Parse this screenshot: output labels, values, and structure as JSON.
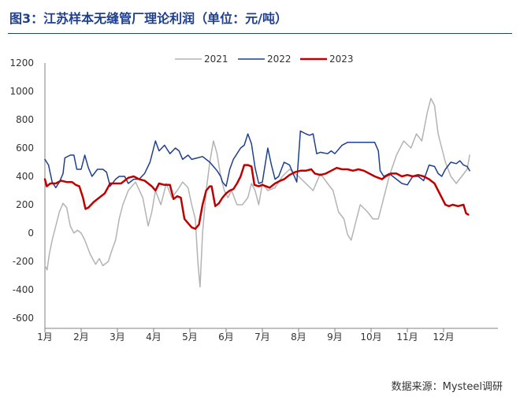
{
  "title": "图3：江苏样本无缝管厂理论利润（单位：元/吨）",
  "source": "数据来源：Mysteel调研",
  "chart_data": {
    "type": "line",
    "ylim": [
      -600,
      1200
    ],
    "yticks": [
      1200,
      1000,
      800,
      600,
      400,
      200,
      0,
      -200,
      -400,
      -600
    ],
    "xlim": [
      0,
      12
    ],
    "xticks": [
      {
        "label": "1月",
        "pos": 0
      },
      {
        "label": "2月",
        "pos": 1
      },
      {
        "label": "3月",
        "pos": 2
      },
      {
        "label": "4月",
        "pos": 3
      },
      {
        "label": "5月",
        "pos": 4
      },
      {
        "label": "6月",
        "pos": 5
      },
      {
        "label": "7月",
        "pos": 6
      },
      {
        "label": "8月",
        "pos": 7
      },
      {
        "label": "9月",
        "pos": 8
      },
      {
        "label": "10月",
        "pos": 9
      },
      {
        "label": "11月",
        "pos": 10
      },
      {
        "label": "12月",
        "pos": 11
      }
    ],
    "legend_position": "top",
    "series": [
      {
        "name": "2021",
        "color": "#b3b3b3",
        "width": 1.5,
        "points": [
          [
            0.0,
            -230
          ],
          [
            0.06,
            -260
          ],
          [
            0.12,
            -150
          ],
          [
            0.2,
            -50
          ],
          [
            0.3,
            50
          ],
          [
            0.4,
            150
          ],
          [
            0.5,
            210
          ],
          [
            0.6,
            180
          ],
          [
            0.7,
            50
          ],
          [
            0.8,
            0
          ],
          [
            0.9,
            20
          ],
          [
            1.0,
            0
          ],
          [
            1.1,
            -50
          ],
          [
            1.25,
            -150
          ],
          [
            1.4,
            -220
          ],
          [
            1.5,
            -180
          ],
          [
            1.6,
            -230
          ],
          [
            1.75,
            -200
          ],
          [
            1.85,
            -120
          ],
          [
            1.95,
            -50
          ],
          [
            2.05,
            100
          ],
          [
            2.15,
            200
          ],
          [
            2.3,
            300
          ],
          [
            2.5,
            360
          ],
          [
            2.7,
            250
          ],
          [
            2.85,
            50
          ],
          [
            2.95,
            150
          ],
          [
            3.05,
            300
          ],
          [
            3.2,
            200
          ],
          [
            3.35,
            350
          ],
          [
            3.5,
            250
          ],
          [
            3.65,
            300
          ],
          [
            3.8,
            360
          ],
          [
            3.95,
            320
          ],
          [
            4.05,
            200
          ],
          [
            4.15,
            100
          ],
          [
            4.22,
            -200
          ],
          [
            4.28,
            -380
          ],
          [
            4.35,
            0
          ],
          [
            4.45,
            300
          ],
          [
            4.55,
            500
          ],
          [
            4.65,
            650
          ],
          [
            4.75,
            560
          ],
          [
            4.85,
            400
          ],
          [
            4.95,
            300
          ],
          [
            5.05,
            250
          ],
          [
            5.15,
            300
          ],
          [
            5.3,
            200
          ],
          [
            5.45,
            200
          ],
          [
            5.6,
            250
          ],
          [
            5.7,
            350
          ],
          [
            5.8,
            300
          ],
          [
            5.9,
            200
          ],
          [
            6.0,
            350
          ],
          [
            6.15,
            300
          ],
          [
            6.35,
            320
          ],
          [
            6.55,
            400
          ],
          [
            6.75,
            450
          ],
          [
            7.0,
            400
          ],
          [
            7.2,
            350
          ],
          [
            7.4,
            300
          ],
          [
            7.6,
            420
          ],
          [
            7.8,
            350
          ],
          [
            7.95,
            300
          ],
          [
            8.1,
            150
          ],
          [
            8.25,
            100
          ],
          [
            8.35,
            -10
          ],
          [
            8.45,
            -50
          ],
          [
            8.55,
            50
          ],
          [
            8.7,
            200
          ],
          [
            8.9,
            150
          ],
          [
            9.05,
            100
          ],
          [
            9.2,
            100
          ],
          [
            9.3,
            200
          ],
          [
            9.5,
            400
          ],
          [
            9.7,
            550
          ],
          [
            9.9,
            650
          ],
          [
            10.1,
            600
          ],
          [
            10.25,
            700
          ],
          [
            10.4,
            650
          ],
          [
            10.55,
            850
          ],
          [
            10.65,
            950
          ],
          [
            10.75,
            900
          ],
          [
            10.85,
            700
          ],
          [
            10.95,
            600
          ],
          [
            11.05,
            500
          ],
          [
            11.2,
            400
          ],
          [
            11.35,
            350
          ],
          [
            11.5,
            400
          ],
          [
            11.65,
            450
          ],
          [
            11.72,
            550
          ]
        ]
      },
      {
        "name": "2022",
        "color": "#1f3f8f",
        "width": 1.5,
        "points": [
          [
            0.0,
            520
          ],
          [
            0.1,
            480
          ],
          [
            0.2,
            360
          ],
          [
            0.3,
            320
          ],
          [
            0.4,
            360
          ],
          [
            0.5,
            420
          ],
          [
            0.55,
            530
          ],
          [
            0.7,
            550
          ],
          [
            0.8,
            550
          ],
          [
            0.88,
            450
          ],
          [
            1.0,
            450
          ],
          [
            1.1,
            550
          ],
          [
            1.2,
            460
          ],
          [
            1.3,
            400
          ],
          [
            1.45,
            450
          ],
          [
            1.6,
            450
          ],
          [
            1.7,
            430
          ],
          [
            1.8,
            330
          ],
          [
            1.95,
            380
          ],
          [
            2.05,
            400
          ],
          [
            2.2,
            400
          ],
          [
            2.3,
            350
          ],
          [
            2.45,
            380
          ],
          [
            2.6,
            380
          ],
          [
            2.75,
            420
          ],
          [
            2.9,
            500
          ],
          [
            3.05,
            650
          ],
          [
            3.15,
            580
          ],
          [
            3.3,
            620
          ],
          [
            3.45,
            560
          ],
          [
            3.6,
            600
          ],
          [
            3.7,
            580
          ],
          [
            3.8,
            520
          ],
          [
            3.95,
            550
          ],
          [
            4.05,
            520
          ],
          [
            4.2,
            530
          ],
          [
            4.35,
            540
          ],
          [
            4.55,
            500
          ],
          [
            4.65,
            470
          ],
          [
            4.75,
            440
          ],
          [
            4.85,
            400
          ],
          [
            4.9,
            360
          ],
          [
            5.0,
            330
          ],
          [
            5.1,
            450
          ],
          [
            5.2,
            520
          ],
          [
            5.3,
            560
          ],
          [
            5.4,
            600
          ],
          [
            5.5,
            620
          ],
          [
            5.6,
            700
          ],
          [
            5.7,
            630
          ],
          [
            5.8,
            460
          ],
          [
            5.9,
            350
          ],
          [
            6.0,
            360
          ],
          [
            6.15,
            600
          ],
          [
            6.25,
            480
          ],
          [
            6.35,
            380
          ],
          [
            6.45,
            400
          ],
          [
            6.6,
            500
          ],
          [
            6.75,
            480
          ],
          [
            6.85,
            420
          ],
          [
            6.95,
            360
          ],
          [
            7.05,
            720
          ],
          [
            7.2,
            700
          ],
          [
            7.3,
            690
          ],
          [
            7.4,
            700
          ],
          [
            7.5,
            560
          ],
          [
            7.6,
            570
          ],
          [
            7.8,
            560
          ],
          [
            7.9,
            580
          ],
          [
            8.0,
            560
          ],
          [
            8.2,
            620
          ],
          [
            8.35,
            640
          ],
          [
            8.5,
            640
          ],
          [
            8.7,
            640
          ],
          [
            8.9,
            640
          ],
          [
            9.1,
            640
          ],
          [
            9.2,
            580
          ],
          [
            9.25,
            440
          ],
          [
            9.35,
            400
          ],
          [
            9.5,
            420
          ],
          [
            9.6,
            400
          ],
          [
            9.7,
            380
          ],
          [
            9.85,
            350
          ],
          [
            10.0,
            340
          ],
          [
            10.15,
            400
          ],
          [
            10.3,
            400
          ],
          [
            10.45,
            370
          ],
          [
            10.6,
            480
          ],
          [
            10.75,
            470
          ],
          [
            10.85,
            420
          ],
          [
            10.95,
            400
          ],
          [
            11.05,
            450
          ],
          [
            11.2,
            500
          ],
          [
            11.35,
            490
          ],
          [
            11.45,
            510
          ],
          [
            11.55,
            480
          ],
          [
            11.65,
            470
          ],
          [
            11.72,
            440
          ]
        ]
      },
      {
        "name": "2023",
        "color": "#c00000",
        "width": 2.5,
        "points": [
          [
            0.0,
            380
          ],
          [
            0.05,
            330
          ],
          [
            0.15,
            350
          ],
          [
            0.3,
            350
          ],
          [
            0.45,
            370
          ],
          [
            0.6,
            360
          ],
          [
            0.75,
            360
          ],
          [
            0.85,
            340
          ],
          [
            0.95,
            330
          ],
          [
            1.05,
            250
          ],
          [
            1.12,
            170
          ],
          [
            1.2,
            180
          ],
          [
            1.35,
            220
          ],
          [
            1.5,
            250
          ],
          [
            1.65,
            280
          ],
          [
            1.8,
            350
          ],
          [
            1.95,
            350
          ],
          [
            2.1,
            350
          ],
          [
            2.3,
            390
          ],
          [
            2.45,
            400
          ],
          [
            2.6,
            380
          ],
          [
            2.75,
            370
          ],
          [
            2.85,
            350
          ],
          [
            2.95,
            330
          ],
          [
            3.05,
            300
          ],
          [
            3.15,
            350
          ],
          [
            3.3,
            340
          ],
          [
            3.45,
            340
          ],
          [
            3.55,
            240
          ],
          [
            3.65,
            260
          ],
          [
            3.75,
            250
          ],
          [
            3.85,
            100
          ],
          [
            3.95,
            70
          ],
          [
            4.05,
            40
          ],
          [
            4.15,
            30
          ],
          [
            4.25,
            60
          ],
          [
            4.35,
            200
          ],
          [
            4.45,
            300
          ],
          [
            4.55,
            330
          ],
          [
            4.6,
            330
          ],
          [
            4.7,
            190
          ],
          [
            4.8,
            210
          ],
          [
            4.9,
            250
          ],
          [
            5.0,
            280
          ],
          [
            5.1,
            300
          ],
          [
            5.2,
            310
          ],
          [
            5.3,
            350
          ],
          [
            5.4,
            400
          ],
          [
            5.5,
            480
          ],
          [
            5.6,
            480
          ],
          [
            5.7,
            470
          ],
          [
            5.78,
            340
          ],
          [
            5.9,
            330
          ],
          [
            6.0,
            340
          ],
          [
            6.1,
            330
          ],
          [
            6.2,
            320
          ],
          [
            6.35,
            350
          ],
          [
            6.5,
            370
          ],
          [
            6.6,
            380
          ],
          [
            6.75,
            410
          ],
          [
            6.9,
            430
          ],
          [
            7.05,
            440
          ],
          [
            7.2,
            440
          ],
          [
            7.35,
            450
          ],
          [
            7.45,
            420
          ],
          [
            7.6,
            410
          ],
          [
            7.75,
            420
          ],
          [
            7.9,
            440
          ],
          [
            8.05,
            460
          ],
          [
            8.2,
            450
          ],
          [
            8.35,
            450
          ],
          [
            8.5,
            440
          ],
          [
            8.65,
            450
          ],
          [
            8.8,
            440
          ],
          [
            8.95,
            420
          ],
          [
            9.1,
            400
          ],
          [
            9.2,
            390
          ],
          [
            9.3,
            380
          ],
          [
            9.4,
            400
          ],
          [
            9.55,
            420
          ],
          [
            9.7,
            420
          ],
          [
            9.85,
            400
          ],
          [
            10.0,
            410
          ],
          [
            10.15,
            400
          ],
          [
            10.3,
            410
          ],
          [
            10.45,
            400
          ],
          [
            10.6,
            380
          ],
          [
            10.75,
            350
          ],
          [
            10.85,
            300
          ],
          [
            10.95,
            250
          ],
          [
            11.05,
            200
          ],
          [
            11.15,
            190
          ],
          [
            11.25,
            200
          ],
          [
            11.4,
            190
          ],
          [
            11.55,
            200
          ],
          [
            11.62,
            140
          ],
          [
            11.68,
            130
          ]
        ]
      }
    ]
  }
}
